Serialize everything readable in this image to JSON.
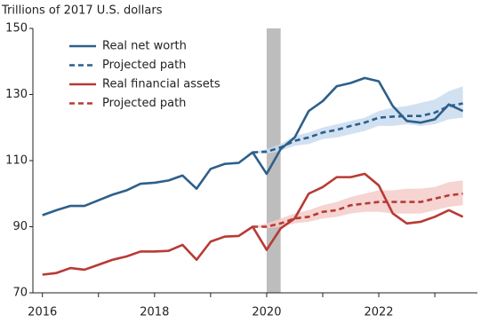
{
  "chart_data": {
    "type": "line",
    "y_label": "Trillions of 2017 U.S. dollars",
    "xlim": [
      2015.83,
      2023.76
    ],
    "ylim": [
      70,
      150
    ],
    "yticks": [
      70,
      90,
      110,
      130,
      150
    ],
    "xticks": [
      2016,
      2018,
      2020,
      2022
    ],
    "x_minor_ticks": [
      2017,
      2019,
      2021,
      2023
    ],
    "shaded_span": [
      2020,
      2020.25
    ],
    "shaded_color": "#bdbdbd",
    "grid": false,
    "legend": "upper left",
    "series": [
      {
        "name": "Real net worth",
        "color": "#2e5f8a",
        "dashed": false,
        "x": [
          2016,
          2016.25,
          2016.5,
          2016.75,
          2017,
          2017.25,
          2017.5,
          2017.75,
          2018,
          2018.25,
          2018.5,
          2018.75,
          2019,
          2019.25,
          2019.5,
          2019.75,
          2020,
          2020.25,
          2020.5,
          2020.75,
          2021,
          2021.25,
          2021.5,
          2021.75,
          2022,
          2022.25,
          2022.5,
          2022.75,
          2023,
          2023.25,
          2023.5
        ],
        "values": [
          93.5,
          95,
          96.3,
          96.3,
          98,
          99.7,
          101,
          103,
          103.3,
          104,
          105.5,
          101.5,
          107.5,
          109,
          109.3,
          112.5,
          106,
          113.5,
          117,
          125,
          128,
          132.5,
          133.5,
          135,
          134,
          126.5,
          122,
          121.5,
          122.5,
          127,
          125
        ]
      },
      {
        "name": "Projected path",
        "color": "#2e5f8a",
        "dashed": true,
        "x": [
          2019.75,
          2020,
          2020.25,
          2020.5,
          2020.75,
          2021,
          2021.25,
          2021.5,
          2021.75,
          2022,
          2022.25,
          2022.5,
          2022.75,
          2023,
          2023.25,
          2023.5
        ],
        "values": [
          112.5,
          112.7,
          114,
          116,
          117,
          118.5,
          119.3,
          120.5,
          121.5,
          123,
          123.3,
          123.5,
          123.5,
          124.5,
          126.5,
          127.3
        ],
        "band_color": "#c9dcf0",
        "band_low": [
          112.5,
          112,
          113,
          114.5,
          115,
          116.5,
          117,
          118,
          119,
          120.5,
          120.5,
          121,
          120.5,
          121,
          122.5,
          123
        ],
        "band_high": [
          112.5,
          113.5,
          115,
          117.5,
          118.5,
          120,
          121,
          122,
          123,
          125,
          126,
          126.5,
          127.5,
          128.5,
          131,
          132.5
        ]
      },
      {
        "name": "Real financial assets",
        "color": "#b83a34",
        "dashed": false,
        "x": [
          2016,
          2016.25,
          2016.5,
          2016.75,
          2017,
          2017.25,
          2017.5,
          2017.75,
          2018,
          2018.25,
          2018.5,
          2018.75,
          2019,
          2019.25,
          2019.5,
          2019.75,
          2020,
          2020.25,
          2020.5,
          2020.75,
          2021,
          2021.25,
          2021.5,
          2021.75,
          2022,
          2022.25,
          2022.5,
          2022.75,
          2023,
          2023.25,
          2023.5
        ],
        "values": [
          75.5,
          76,
          77.5,
          77,
          78.5,
          80,
          81,
          82.5,
          82.5,
          82.7,
          84.5,
          80,
          85.5,
          87,
          87.2,
          90,
          83,
          89.5,
          92.5,
          100,
          102,
          105,
          105,
          106,
          102.5,
          94,
          91,
          91.5,
          93,
          95,
          93
        ]
      },
      {
        "name": "Projected path",
        "color": "#b83a34",
        "dashed": true,
        "x": [
          2019.75,
          2020,
          2020.25,
          2020.5,
          2020.75,
          2021,
          2021.25,
          2021.5,
          2021.75,
          2022,
          2022.25,
          2022.5,
          2022.75,
          2023,
          2023.25,
          2023.5
        ],
        "values": [
          90,
          90,
          91,
          92.5,
          93,
          94.5,
          95,
          96.5,
          97,
          97.5,
          97.5,
          97.5,
          97.5,
          98.5,
          99.5,
          100
        ],
        "band_color": "#f3cdca",
        "band_low": [
          90,
          89.5,
          90,
          91,
          91.5,
          92.5,
          93,
          94,
          94.5,
          94.5,
          94,
          94,
          94,
          95,
          96,
          96.5
        ],
        "band_high": [
          90,
          91,
          92.5,
          94,
          95,
          96.5,
          97.5,
          99,
          100,
          101,
          101,
          101.5,
          101.5,
          102,
          103.5,
          104
        ]
      }
    ]
  }
}
